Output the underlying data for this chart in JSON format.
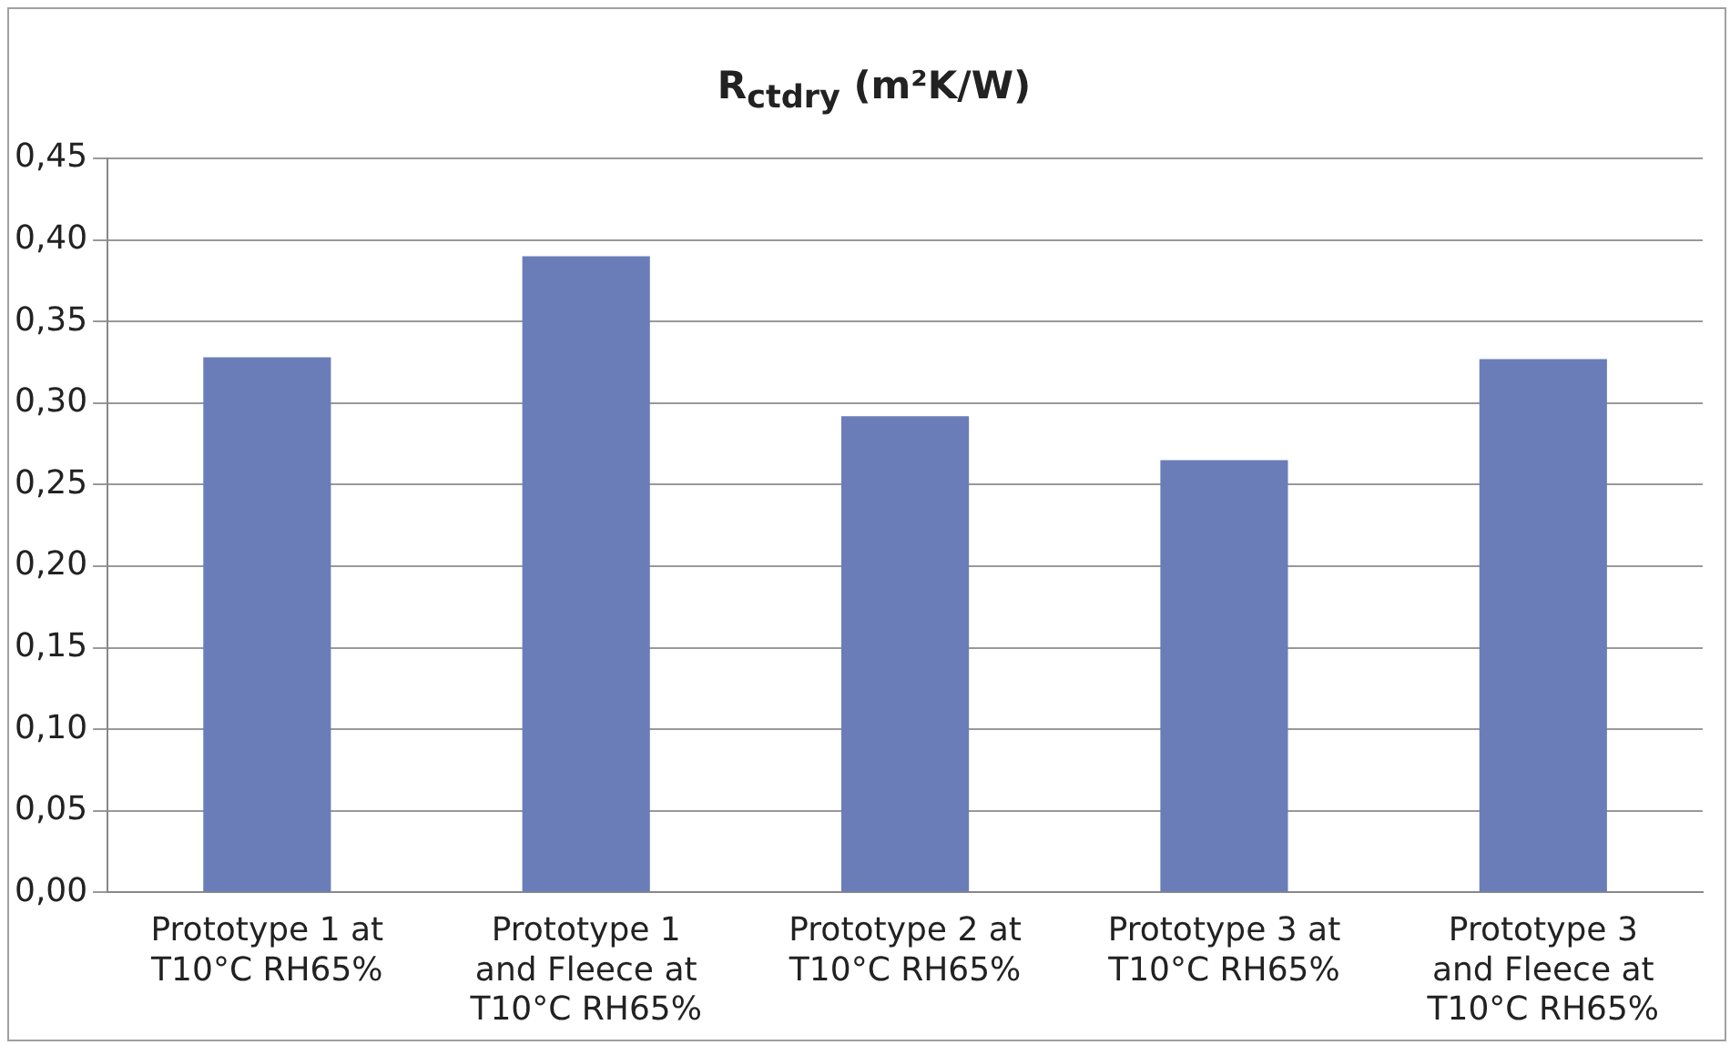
{
  "chart_data": {
    "type": "bar",
    "title": "R$_{ctdry}$ (m²K/W)",
    "categories": [
      "Prototype 1 at T10°C RH65%",
      "Prototype 1 and Fleece at T10°C RH65%",
      "Prototype 2 at T10°C RH65%",
      "Prototype 3 at T10°C RH65%",
      "Prototype 3 and Fleece at T10°C RH65%"
    ],
    "values": [
      0.328,
      0.39,
      0.292,
      0.265,
      0.327
    ],
    "color": "#6a7db8",
    "ylim": [
      0,
      0.45
    ],
    "yticks": [
      {
        "value": 0,
        "label": "0,00"
      },
      {
        "value": 0.05,
        "label": "0,05"
      },
      {
        "value": 0.1,
        "label": "0,10"
      },
      {
        "value": 0.15,
        "label": "0,15"
      },
      {
        "value": 0.2,
        "label": "0,20"
      },
      {
        "value": 0.25,
        "label": "0,25"
      },
      {
        "value": 0.3,
        "label": "0,30"
      },
      {
        "value": 0.35,
        "label": "0,35"
      },
      {
        "value": 0.4,
        "label": "0,40"
      },
      {
        "value": 0.45,
        "label": "0,45"
      }
    ],
    "grid": "y",
    "legend": false
  }
}
